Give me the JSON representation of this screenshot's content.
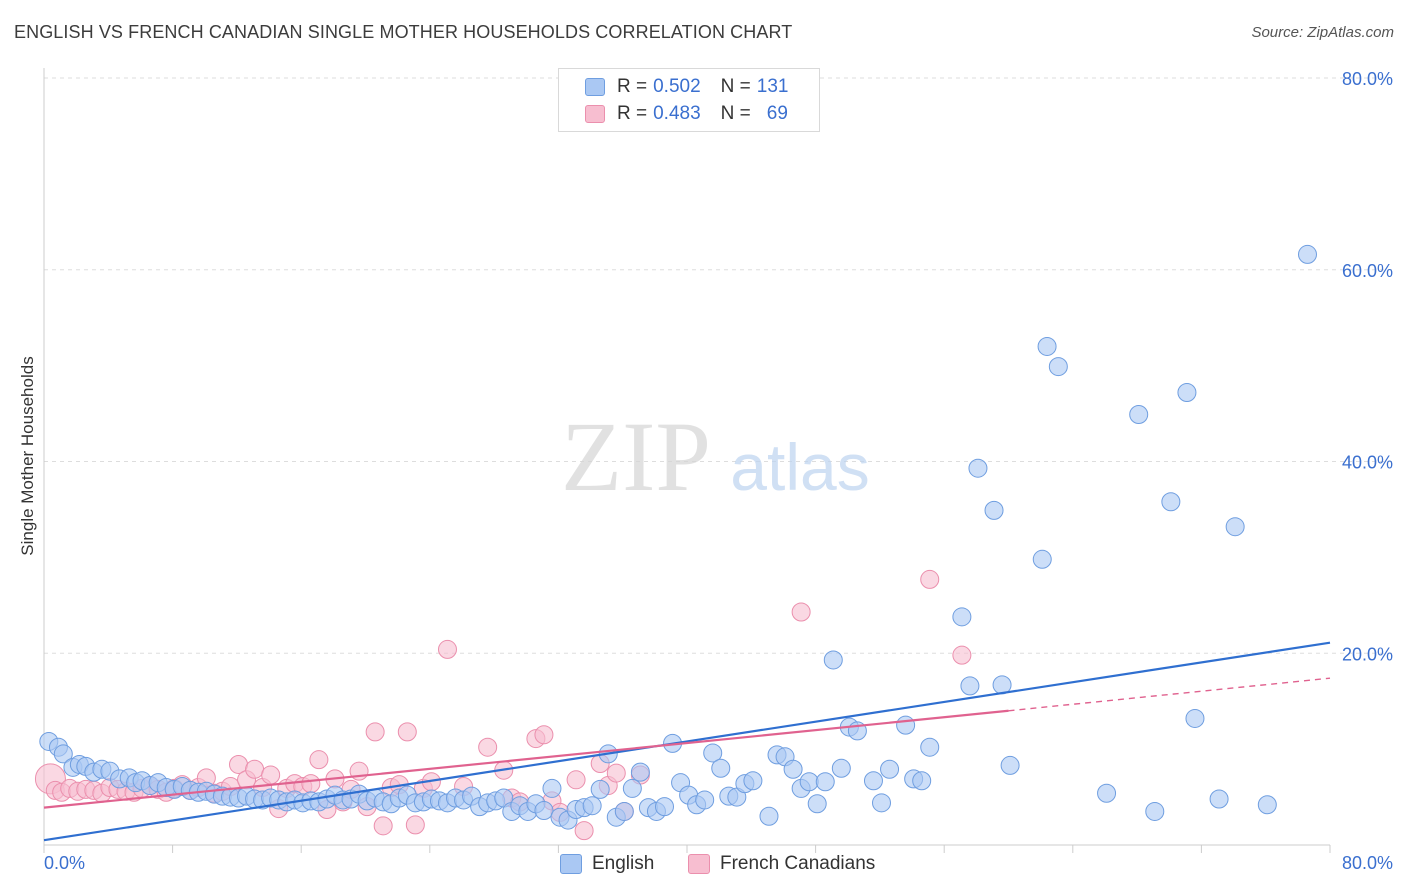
{
  "header": {
    "title": "ENGLISH VS FRENCH CANADIAN SINGLE MOTHER HOUSEHOLDS CORRELATION CHART",
    "source": "Source: ZipAtlas.com"
  },
  "watermark": {
    "zip": "ZIP",
    "atlas": "atlas"
  },
  "legend": {
    "english": {
      "r_label": "R = ",
      "r_value": "0.502",
      "n_label": "N = ",
      "n_value": "131"
    },
    "french": {
      "r_label": "R = ",
      "r_value": "0.483",
      "n_label": "N = ",
      "n_value": "69"
    }
  },
  "colors": {
    "english_fill": "#aac8f3",
    "english_stroke": "#6f9ee0",
    "english_line": "#2f6fd0",
    "french_fill": "#f7bed0",
    "french_stroke": "#eb8fad",
    "french_line": "#e0628f",
    "axis_label": "#3a6fcf",
    "grid": "#dddddd"
  },
  "chart_data": {
    "type": "scatter",
    "title": "ENGLISH VS FRENCH CANADIAN SINGLE MOTHER HOUSEHOLDS CORRELATION CHART",
    "xlabel": "",
    "ylabel": "Single Mother Households",
    "xlim": [
      0,
      80
    ],
    "ylim": [
      0,
      80
    ],
    "x_tick_labels": [
      "0.0%",
      "80.0%"
    ],
    "y_tick_values": [
      20,
      40,
      60,
      80
    ],
    "y_tick_labels": [
      "20.0%",
      "40.0%",
      "60.0%",
      "80.0%"
    ],
    "grid": true,
    "legend_position": "bottom",
    "series": [
      {
        "name": "English",
        "r": 0.502,
        "n": 131,
        "trend": {
          "x": [
            0,
            80
          ],
          "y": [
            0.5,
            21.1
          ]
        },
        "points": [
          [
            0.3,
            10.8
          ],
          [
            0.9,
            10.2
          ],
          [
            1.2,
            9.5
          ],
          [
            1.8,
            8.1
          ],
          [
            2.2,
            8.4
          ],
          [
            2.6,
            8.2
          ],
          [
            3.1,
            7.6
          ],
          [
            3.6,
            7.9
          ],
          [
            4.1,
            7.7
          ],
          [
            4.7,
            6.9
          ],
          [
            5.3,
            7.0
          ],
          [
            5.7,
            6.5
          ],
          [
            6.1,
            6.7
          ],
          [
            6.6,
            6.2
          ],
          [
            7.1,
            6.5
          ],
          [
            7.6,
            6.0
          ],
          [
            8.1,
            5.8
          ],
          [
            8.6,
            6.1
          ],
          [
            9.1,
            5.7
          ],
          [
            9.6,
            5.5
          ],
          [
            10.1,
            5.6
          ],
          [
            10.6,
            5.3
          ],
          [
            11.1,
            5.1
          ],
          [
            11.6,
            5.0
          ],
          [
            12.1,
            4.9
          ],
          [
            12.6,
            5.1
          ],
          [
            13.1,
            4.8
          ],
          [
            13.6,
            4.7
          ],
          [
            14.1,
            4.9
          ],
          [
            14.6,
            4.7
          ],
          [
            15.1,
            4.5
          ],
          [
            15.6,
            4.7
          ],
          [
            16.1,
            4.4
          ],
          [
            16.6,
            4.6
          ],
          [
            17.1,
            4.5
          ],
          [
            17.6,
            4.8
          ],
          [
            18.1,
            5.2
          ],
          [
            18.6,
            4.7
          ],
          [
            19.1,
            4.8
          ],
          [
            19.6,
            5.3
          ],
          [
            20.1,
            4.6
          ],
          [
            20.6,
            4.9
          ],
          [
            21.1,
            4.5
          ],
          [
            21.6,
            4.3
          ],
          [
            22.1,
            4.9
          ],
          [
            22.6,
            5.2
          ],
          [
            23.1,
            4.4
          ],
          [
            23.6,
            4.5
          ],
          [
            24.1,
            4.8
          ],
          [
            24.6,
            4.6
          ],
          [
            25.1,
            4.4
          ],
          [
            25.6,
            4.9
          ],
          [
            26.1,
            4.7
          ],
          [
            26.6,
            5.1
          ],
          [
            27.1,
            4.0
          ],
          [
            27.6,
            4.4
          ],
          [
            28.1,
            4.6
          ],
          [
            28.6,
            4.9
          ],
          [
            29.1,
            3.5
          ],
          [
            29.6,
            4.1
          ],
          [
            30.1,
            3.5
          ],
          [
            30.6,
            4.3
          ],
          [
            31.1,
            3.6
          ],
          [
            31.6,
            5.9
          ],
          [
            32.1,
            2.9
          ],
          [
            32.6,
            2.6
          ],
          [
            33.1,
            3.7
          ],
          [
            33.6,
            3.9
          ],
          [
            34.1,
            4.1
          ],
          [
            34.6,
            5.8
          ],
          [
            35.1,
            9.5
          ],
          [
            35.6,
            2.9
          ],
          [
            36.1,
            3.5
          ],
          [
            36.6,
            5.9
          ],
          [
            37.1,
            7.6
          ],
          [
            37.6,
            3.9
          ],
          [
            38.1,
            3.5
          ],
          [
            38.6,
            4.0
          ],
          [
            39.1,
            10.6
          ],
          [
            39.6,
            6.5
          ],
          [
            40.1,
            5.2
          ],
          [
            40.6,
            4.2
          ],
          [
            41.1,
            4.7
          ],
          [
            41.6,
            9.6
          ],
          [
            42.1,
            8.0
          ],
          [
            42.6,
            5.1
          ],
          [
            43.1,
            5.0
          ],
          [
            43.6,
            6.4
          ],
          [
            44.1,
            6.7
          ],
          [
            45.1,
            3.0
          ],
          [
            45.6,
            9.4
          ],
          [
            46.1,
            9.2
          ],
          [
            46.6,
            7.9
          ],
          [
            47.1,
            5.9
          ],
          [
            47.6,
            6.6
          ],
          [
            48.1,
            4.3
          ],
          [
            48.6,
            6.6
          ],
          [
            49.1,
            19.3
          ],
          [
            49.6,
            8.0
          ],
          [
            50.1,
            12.3
          ],
          [
            50.6,
            11.9
          ],
          [
            51.6,
            6.7
          ],
          [
            52.1,
            4.4
          ],
          [
            52.6,
            7.9
          ],
          [
            53.6,
            12.5
          ],
          [
            54.1,
            6.9
          ],
          [
            54.6,
            6.7
          ],
          [
            55.1,
            10.2
          ],
          [
            57.1,
            23.8
          ],
          [
            57.6,
            16.6
          ],
          [
            58.1,
            39.3
          ],
          [
            59.1,
            34.9
          ],
          [
            59.6,
            16.7
          ],
          [
            60.1,
            8.3
          ],
          [
            62.1,
            29.8
          ],
          [
            62.4,
            52.0
          ],
          [
            63.1,
            49.9
          ],
          [
            66.1,
            5.4
          ],
          [
            68.1,
            44.9
          ],
          [
            69.1,
            3.5
          ],
          [
            70.1,
            35.8
          ],
          [
            71.1,
            47.2
          ],
          [
            71.6,
            13.2
          ],
          [
            73.1,
            4.8
          ],
          [
            74.1,
            33.2
          ],
          [
            76.1,
            4.2
          ],
          [
            78.6,
            61.6
          ]
        ]
      },
      {
        "name": "French Canadians",
        "r": 0.483,
        "n": 69,
        "trend": {
          "x": [
            0,
            60
          ],
          "y": [
            3.9,
            14.0
          ]
        },
        "trend_extended": {
          "x": [
            60,
            80
          ],
          "y": [
            14.0,
            17.4
          ]
        },
        "points": [
          [
            0.4,
            6.9
          ],
          [
            0.7,
            5.7
          ],
          [
            1.1,
            5.5
          ],
          [
            1.6,
            5.9
          ],
          [
            2.1,
            5.6
          ],
          [
            2.6,
            5.8
          ],
          [
            3.1,
            5.7
          ],
          [
            3.6,
            5.4
          ],
          [
            4.1,
            6.0
          ],
          [
            4.6,
            5.8
          ],
          [
            5.1,
            5.6
          ],
          [
            5.6,
            5.5
          ],
          [
            6.1,
            5.9
          ],
          [
            6.6,
            6.2
          ],
          [
            7.1,
            5.8
          ],
          [
            7.6,
            5.5
          ],
          [
            8.1,
            5.9
          ],
          [
            8.6,
            6.3
          ],
          [
            9.1,
            5.7
          ],
          [
            9.6,
            6.0
          ],
          [
            10.1,
            7.0
          ],
          [
            10.6,
            5.4
          ],
          [
            11.1,
            5.6
          ],
          [
            11.6,
            6.1
          ],
          [
            12.1,
            8.4
          ],
          [
            12.6,
            6.8
          ],
          [
            13.1,
            7.9
          ],
          [
            13.6,
            6.0
          ],
          [
            14.1,
            7.3
          ],
          [
            14.6,
            3.8
          ],
          [
            15.1,
            5.9
          ],
          [
            15.6,
            6.4
          ],
          [
            16.1,
            6.1
          ],
          [
            16.6,
            6.4
          ],
          [
            17.1,
            8.9
          ],
          [
            17.6,
            3.7
          ],
          [
            18.1,
            6.9
          ],
          [
            18.6,
            4.5
          ],
          [
            19.1,
            5.8
          ],
          [
            19.6,
            7.7
          ],
          [
            20.1,
            4.0
          ],
          [
            20.6,
            11.8
          ],
          [
            21.1,
            2.0
          ],
          [
            21.6,
            6.0
          ],
          [
            22.1,
            6.3
          ],
          [
            22.6,
            11.8
          ],
          [
            23.1,
            2.1
          ],
          [
            23.6,
            5.9
          ],
          [
            24.1,
            6.6
          ],
          [
            25.1,
            20.4
          ],
          [
            26.1,
            6.1
          ],
          [
            27.6,
            10.2
          ],
          [
            28.6,
            7.8
          ],
          [
            29.1,
            4.9
          ],
          [
            29.6,
            4.5
          ],
          [
            30.6,
            11.1
          ],
          [
            31.1,
            11.5
          ],
          [
            31.6,
            4.6
          ],
          [
            32.1,
            3.4
          ],
          [
            33.1,
            6.8
          ],
          [
            33.6,
            1.5
          ],
          [
            34.6,
            8.5
          ],
          [
            35.1,
            6.2
          ],
          [
            35.6,
            7.5
          ],
          [
            36.1,
            3.5
          ],
          [
            37.1,
            7.3
          ],
          [
            47.1,
            24.3
          ],
          [
            55.1,
            27.7
          ],
          [
            57.1,
            19.8
          ]
        ]
      }
    ]
  },
  "bottom_legend": {
    "english_label": "English",
    "french_label": "French Canadians"
  }
}
